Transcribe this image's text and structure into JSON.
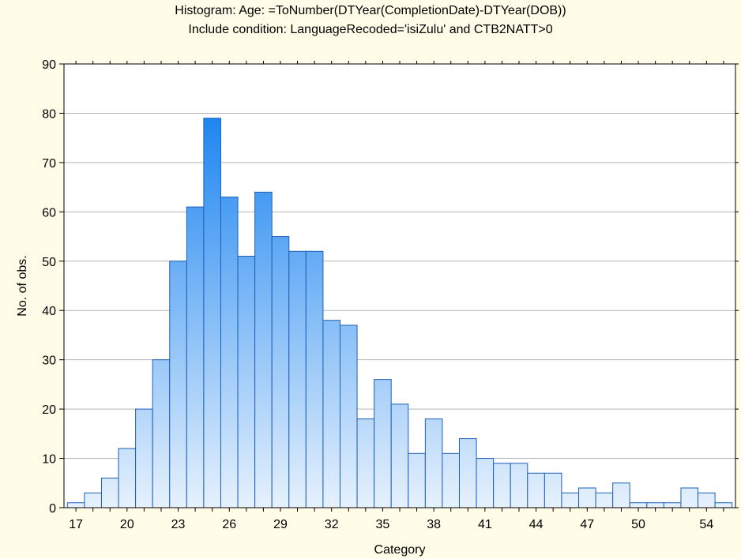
{
  "chart_data": {
    "type": "bar",
    "title": "Histogram: Age: =ToNumber(DTYear(CompletionDate)-DTYear(DOB))",
    "subtitle": "Include condition: LanguageRecoded='isiZulu' and CTB2NATT>0",
    "xlabel": "Category",
    "ylabel": "No. of obs.",
    "ylim": [
      0,
      90
    ],
    "yticks": [
      0,
      10,
      20,
      30,
      40,
      50,
      60,
      70,
      80,
      90
    ],
    "xtick_labels": [
      "17",
      "20",
      "23",
      "26",
      "29",
      "32",
      "35",
      "38",
      "41",
      "44",
      "47",
      "50",
      "54"
    ],
    "xtick_label_bins": [
      0,
      3,
      6,
      9,
      12,
      15,
      18,
      21,
      24,
      27,
      30,
      33,
      37
    ],
    "values": [
      1,
      3,
      6,
      12,
      20,
      30,
      50,
      61,
      79,
      63,
      51,
      64,
      55,
      52,
      52,
      38,
      37,
      18,
      26,
      21,
      11,
      18,
      11,
      14,
      10,
      9,
      9,
      7,
      7,
      3,
      4,
      3,
      5,
      1,
      1,
      1,
      4,
      3,
      1
    ],
    "grid": true,
    "colors": {
      "background": "#fffde8",
      "plot_background": "#ffffff",
      "bar_top": "#1e86f0",
      "bar_bottom": "#e6f1fd",
      "bar_edge": "#1f5fb8",
      "grid": "#b4b4b4"
    }
  }
}
